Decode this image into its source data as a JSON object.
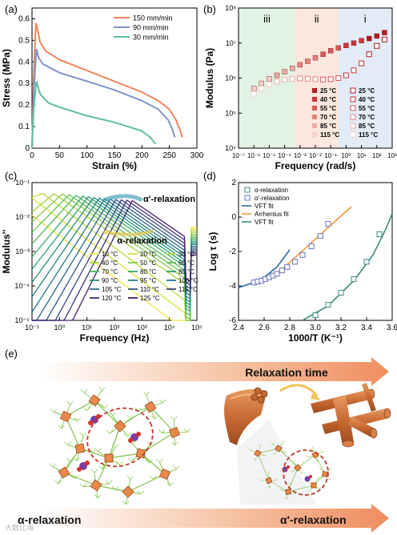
{
  "chart_data": [
    {
      "panel": "(a)",
      "type": "line",
      "xlabel": "Strain (%)",
      "ylabel": "Stress (MPa)",
      "xlim": [
        0,
        300
      ],
      "ylim": [
        0,
        0.65
      ],
      "xticks": [
        0,
        50,
        100,
        150,
        200,
        250,
        300
      ],
      "yticks": [
        0,
        0.1,
        0.2,
        0.3,
        0.4,
        0.5,
        0.6
      ],
      "legend": "top-right",
      "series": [
        {
          "name": "150 mm/min",
          "color": "#f0845a",
          "x": [
            0,
            3,
            7,
            10,
            15,
            25,
            50,
            100,
            150,
            200,
            230,
            250,
            262,
            270,
            273
          ],
          "y": [
            0,
            0.32,
            0.58,
            0.55,
            0.49,
            0.45,
            0.41,
            0.36,
            0.31,
            0.26,
            0.22,
            0.18,
            0.13,
            0.08,
            0.05
          ]
        },
        {
          "name": "90 mm/min",
          "color": "#7f95c9",
          "x": [
            0,
            3,
            8,
            12,
            20,
            50,
            100,
            150,
            200,
            230,
            248,
            255,
            260
          ],
          "y": [
            0,
            0.26,
            0.46,
            0.42,
            0.39,
            0.35,
            0.31,
            0.27,
            0.22,
            0.18,
            0.13,
            0.09,
            0.05
          ]
        },
        {
          "name": "30 mm/min",
          "color": "#5fbf9d",
          "x": [
            0,
            3,
            8,
            15,
            30,
            50,
            100,
            150,
            200,
            215,
            225
          ],
          "y": [
            0,
            0.18,
            0.31,
            0.25,
            0.21,
            0.19,
            0.15,
            0.12,
            0.08,
            0.05,
            0.02
          ]
        }
      ]
    },
    {
      "panel": "(b)",
      "type": "scatter",
      "xlabel": "Frequency (rad/s)",
      "ylabel": "Modulus (Pa)",
      "xscale": "log",
      "yscale": "log",
      "xlim": [
        1e-07,
        1000
      ],
      "ylim": [
        10000,
        100000000
      ],
      "xtick_labels": [
        "10⁻⁷",
        "10⁻⁶",
        "10⁻⁵",
        "10⁻⁴",
        "10⁻³",
        "10⁻²",
        "10⁻¹",
        "10⁰",
        "10¹",
        "10²",
        "10³"
      ],
      "ytick_labels": [
        "10⁴",
        "10⁵",
        "10⁶",
        "10⁷",
        "10⁸"
      ],
      "regions": [
        {
          "label": "iii",
          "from": 1e-07,
          "to": 0.0005,
          "color": "#e3f3e3"
        },
        {
          "label": "ii",
          "from": 0.0005,
          "to": 0.3,
          "color": "#fbe7dd"
        },
        {
          "label": "i",
          "from": 0.3,
          "to": 1000,
          "color": "#e2ebf6"
        }
      ],
      "legend_filled": [
        "25 °C",
        "40 °C",
        "55 °C",
        "70 °C",
        "85 °C",
        "115 °C"
      ],
      "legend_open": [
        "25 °C",
        "40 °C",
        "55 °C",
        "70 °C",
        "85 °C",
        "115 °C"
      ],
      "legend_colors": [
        "#b31b25",
        "#c9353b",
        "#d9595a",
        "#e68480",
        "#efaaa6",
        "#f7d1cc"
      ],
      "storage_modulus": {
        "x_log": [
          -6,
          -5.5,
          -5,
          -4.5,
          -4,
          -3.5,
          -3,
          -2.5,
          -2,
          -1.5,
          -1,
          -0.5,
          0,
          0.5,
          1,
          1.5,
          2,
          2.5
        ],
        "y_log": [
          5.7,
          5.85,
          5.98,
          6.08,
          6.18,
          6.28,
          6.38,
          6.48,
          6.58,
          6.68,
          6.78,
          6.86,
          6.93,
          7.0,
          7.07,
          7.13,
          7.2,
          7.3
        ]
      },
      "loss_modulus": {
        "x_log": [
          -6,
          -5.5,
          -5,
          -4.5,
          -4,
          -3.5,
          -3,
          -2.5,
          -2,
          -1.5,
          -1,
          -0.5,
          0,
          0.5,
          1,
          1.5,
          2,
          2.5
        ],
        "y_log": [
          5.55,
          5.7,
          5.82,
          5.9,
          5.96,
          5.98,
          5.99,
          5.98,
          5.97,
          5.96,
          5.97,
          6.0,
          6.08,
          6.22,
          6.42,
          6.68,
          6.92,
          7.1
        ]
      }
    },
    {
      "panel": "(c)",
      "type": "line",
      "xlabel": "Frequency (Hz)",
      "ylabel": "Modulus''",
      "xscale": "log",
      "yscale": "log",
      "xlim": [
        0.1,
        100000
      ],
      "ylim": [
        1e-05,
        0.1
      ],
      "xtick_labels": [
        "10⁻¹",
        "10⁰",
        "10¹",
        "10²",
        "10³",
        "10⁴",
        "10⁵"
      ],
      "ytick_labels": [
        "10⁻⁵",
        "10⁻⁴",
        "10⁻³",
        "10⁻²",
        "10⁻¹"
      ],
      "annotations": [
        "α'-relaxation",
        "α-relaxation"
      ],
      "legend_labels": [
        "10 °C",
        "20 °C",
        "30 °C",
        "40 °C",
        "50 °C",
        "60 °C",
        "70 °C",
        "80 °C",
        "85 °C",
        "90 °C",
        "95 °C",
        "100 °C",
        "105 °C",
        "110 °C",
        "115 °C",
        "120 °C",
        "125 °C"
      ],
      "legend_colors": [
        "#f0e442",
        "#d8e23a",
        "#bfdc3a",
        "#a2d43e",
        "#84cc46",
        "#66c250",
        "#4cb85b",
        "#38ad66",
        "#2aa071",
        "#21927a",
        "#1f8480",
        "#237584",
        "#2a6686",
        "#315686",
        "#384582",
        "#3e327a",
        "#44206e"
      ],
      "peak_log_freq": [
        -2,
        -1.2,
        -0.6,
        -0.2,
        0.1,
        0.35,
        0.6,
        0.85,
        1.05,
        1.25,
        1.45,
        1.65,
        1.85,
        2.05,
        2.25,
        2.45,
        2.65
      ],
      "peak_log_modulus": [
        -1.35,
        -1.33,
        -1.32,
        -1.32,
        -1.33,
        -1.35,
        -1.37,
        -1.39,
        -1.41,
        -1.43,
        -1.45,
        -1.47,
        -1.48,
        -1.49,
        -1.5,
        -1.51,
        -1.52
      ]
    },
    {
      "panel": "(d)",
      "type": "scatter",
      "xlabel": "1000/T (K⁻¹)",
      "ylabel": "Log τ (s)",
      "xlim": [
        2.4,
        3.6
      ],
      "ylim": [
        -6,
        2
      ],
      "xticks": [
        2.4,
        2.6,
        2.8,
        3.0,
        3.2,
        3.4,
        3.6
      ],
      "yticks": [
        -6,
        -4,
        -2,
        0,
        2
      ],
      "legend": "top-left",
      "series": [
        {
          "name": "α-relaxation",
          "marker": "open-square",
          "color": "#3d8a88",
          "x": [
            3.0,
            3.1,
            3.2,
            3.3,
            3.4,
            3.5
          ],
          "y": [
            -5.7,
            -5.1,
            -4.4,
            -3.6,
            -2.6,
            -1.0
          ]
        },
        {
          "name": "α'-relaxation",
          "marker": "open-square",
          "color": "#6b73c0",
          "x": [
            2.52,
            2.55,
            2.58,
            2.61,
            2.64,
            2.67,
            2.7,
            2.74,
            2.78,
            2.84,
            2.9,
            2.97,
            3.04,
            3.1
          ],
          "y": [
            -3.8,
            -3.75,
            -3.7,
            -3.6,
            -3.5,
            -3.4,
            -3.3,
            -3.1,
            -2.9,
            -2.6,
            -2.2,
            -1.7,
            -1.1,
            -0.4
          ]
        }
      ],
      "fits": [
        {
          "name": "VFT fit",
          "color": "#2e6aa1",
          "x": [
            2.4,
            2.5,
            2.6,
            2.7,
            2.8
          ],
          "y": [
            -4.1,
            -3.85,
            -3.5,
            -2.9,
            -1.9
          ]
        },
        {
          "name": "Arrhenius fit",
          "color": "#ee9a38",
          "x": [
            2.7,
            3.28
          ],
          "y": [
            -3.3,
            0.6
          ]
        },
        {
          "name": "VFT fit",
          "color": "#3d8a78",
          "x": [
            2.9,
            3.1,
            3.3,
            3.45,
            3.55,
            3.6
          ],
          "y": [
            -6.0,
            -5.15,
            -3.7,
            -2.2,
            -0.7,
            0.2
          ]
        }
      ]
    }
  ],
  "schematic": {
    "panel_label": "(e)",
    "top_arrow_label": "Relaxation time",
    "bottom_left_label": "α-relaxation",
    "bottom_right_label": "α'-relaxation"
  },
  "watermark": "大数比海"
}
